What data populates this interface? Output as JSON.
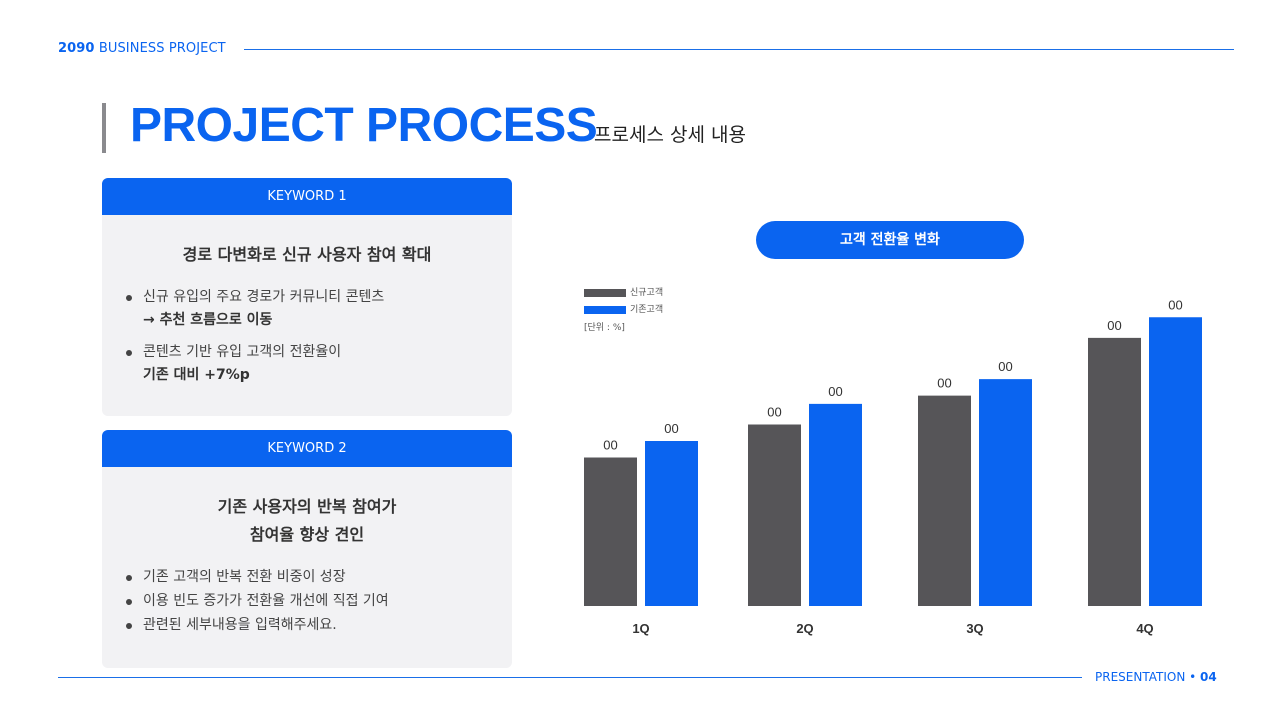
{
  "header": {
    "brand_bold": "2090",
    "brand_rest": " BUSINESS PROJECT",
    "title": "PROJECT PROCESS",
    "subtitle": "프로세스 상세 내용"
  },
  "cards": [
    {
      "keyword": "KEYWORD 1",
      "title_lines": [
        "경로 다변화로 신규 사용자 참여 확대"
      ],
      "bullets": [
        {
          "text": "신규 유입의 주요 경로가 커뮤니티 콘텐츠",
          "strong": "→ 추천 흐름으로 이동"
        },
        {
          "text": "콘텐츠 기반 유입 고객의 전환율이",
          "strong": "기존 대비 +7%p"
        }
      ]
    },
    {
      "keyword": "KEYWORD 2",
      "title_lines": [
        "기존 사용자의 반복 참여가",
        "참여율 향상 견인"
      ],
      "bullets": [
        {
          "text": "기존 고객의 반복 전환 비중이 성장",
          "strong": ""
        },
        {
          "text": "이용 빈도 증가가 전환율 개선에 직접 기여",
          "strong": ""
        },
        {
          "text": "관련된 세부내용을 입력해주세요.",
          "strong": ""
        }
      ]
    }
  ],
  "chart_pill": "고객 전환율 변화",
  "unit_label": "[단위 : %]",
  "colors": {
    "accent": "#0a64f0",
    "series1": "#565558",
    "series2": "#0a64f0"
  },
  "chart_data": {
    "type": "bar",
    "categories": [
      "1Q",
      "2Q",
      "3Q",
      "4Q"
    ],
    "series": [
      {
        "name": "신규고객",
        "values": [
          36,
          44,
          51,
          65
        ],
        "labels": [
          "00",
          "00",
          "00",
          "00"
        ]
      },
      {
        "name": "기존고객",
        "values": [
          40,
          49,
          55,
          70
        ],
        "labels": [
          "00",
          "00",
          "00",
          "00"
        ]
      }
    ],
    "ylim": [
      0,
      80
    ],
    "legend": "top-left",
    "grid": false
  },
  "footer": {
    "label": "PRESENTATION",
    "separator": "•",
    "page": "04"
  }
}
